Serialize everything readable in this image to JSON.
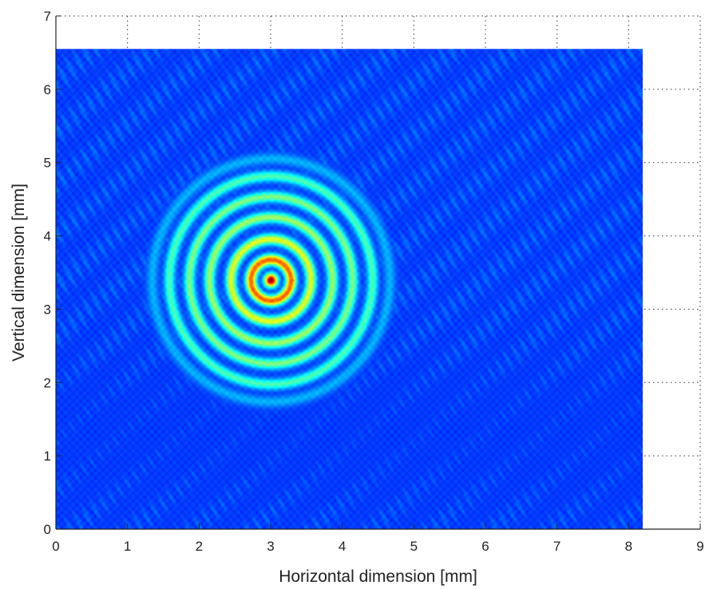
{
  "chart_data": {
    "type": "heatmap",
    "title": "",
    "xlabel": "Horizontal dimension [mm]",
    "ylabel": "Vertical dimension [mm]",
    "xlim": [
      0,
      9
    ],
    "ylim": [
      0,
      7
    ],
    "xticks": [
      "0",
      "1",
      "2",
      "3",
      "4",
      "5",
      "6",
      "7",
      "8",
      "9"
    ],
    "yticks": [
      "0",
      "1",
      "2",
      "3",
      "4",
      "5",
      "6",
      "7"
    ],
    "grid": "dotted",
    "colormap": "jet",
    "image_extent": {
      "x": [
        0,
        8.2
      ],
      "y": [
        0,
        6.55
      ]
    },
    "background_level": 0.18,
    "center": {
      "x": 3.0,
      "y": 3.4
    },
    "rings": [
      {
        "radius": 0.0,
        "intensity": 1.0
      },
      {
        "radius": 0.28,
        "intensity": 0.78
      },
      {
        "radius": 0.56,
        "intensity": 0.6
      },
      {
        "radius": 0.86,
        "intensity": 0.53
      },
      {
        "radius": 1.14,
        "intensity": 0.5
      },
      {
        "radius": 1.42,
        "intensity": 0.45
      }
    ]
  },
  "colors": {
    "axis": "#222222",
    "grid": "#333333",
    "background": "#ffffff"
  }
}
